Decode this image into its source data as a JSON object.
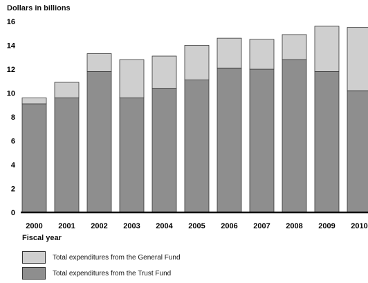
{
  "chart_data": {
    "type": "bar",
    "stacked": true,
    "ylabel": "Dollars in billions",
    "xlabel": "Fiscal year",
    "ylim": [
      0,
      16
    ],
    "yticks": [
      0,
      2,
      4,
      6,
      8,
      10,
      12,
      14,
      16
    ],
    "grid": false,
    "legend_position": "bottom-left",
    "categories": [
      "2000",
      "2001",
      "2002",
      "2003",
      "2004",
      "2005",
      "2006",
      "2007",
      "2008",
      "2009",
      "2010"
    ],
    "series": [
      {
        "name": "Total expenditures from the Trust Fund",
        "color": "#8e8e8e",
        "values": [
          9.1,
          9.6,
          11.8,
          9.6,
          10.4,
          11.1,
          12.1,
          12.0,
          12.8,
          11.8,
          10.2
        ]
      },
      {
        "name": "Total expenditures from the General Fund",
        "color": "#cfcfcf",
        "values": [
          0.5,
          1.3,
          1.5,
          3.2,
          2.7,
          2.9,
          2.5,
          2.5,
          2.1,
          3.8,
          5.3
        ]
      }
    ],
    "legend_order": [
      1,
      0
    ]
  }
}
